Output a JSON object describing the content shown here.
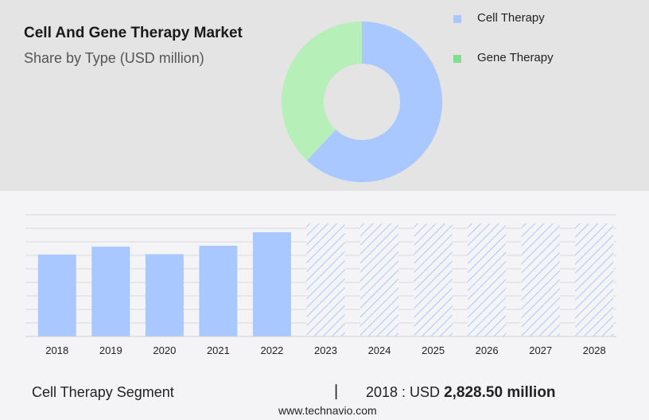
{
  "header": {
    "title": "Cell And Gene Therapy Market",
    "subtitle": "Share by Type (USD million)"
  },
  "legend": [
    {
      "label": "Cell Therapy",
      "color": "#a9c8ff"
    },
    {
      "label": "Gene Therapy",
      "color": "#7ee08f"
    }
  ],
  "footer": {
    "segment": "Cell Therapy Segment",
    "separator": "|",
    "year_label": "2018 : USD",
    "value": "2,828.50 million",
    "source": "www.technavio.com"
  },
  "chart_data": [
    {
      "type": "pie",
      "donut": true,
      "series": [
        {
          "name": "Cell Therapy",
          "value": 62,
          "color": "#a9c8ff"
        },
        {
          "name": "Gene Therapy",
          "value": 38,
          "color": "#b7efb8"
        }
      ]
    },
    {
      "type": "bar",
      "categories": [
        "2018",
        "2019",
        "2020",
        "2021",
        "2022",
        "2023",
        "2024",
        "2025",
        "2026",
        "2027",
        "2028"
      ],
      "values": [
        2828.5,
        3100,
        2840,
        3130,
        3600,
        null,
        null,
        null,
        null,
        null,
        null
      ],
      "forecast_from": "2023",
      "ylim": [
        0,
        4200
      ],
      "grid": true,
      "bar_color": "#a9c8ff",
      "forecast_pattern": "hatched"
    }
  ]
}
